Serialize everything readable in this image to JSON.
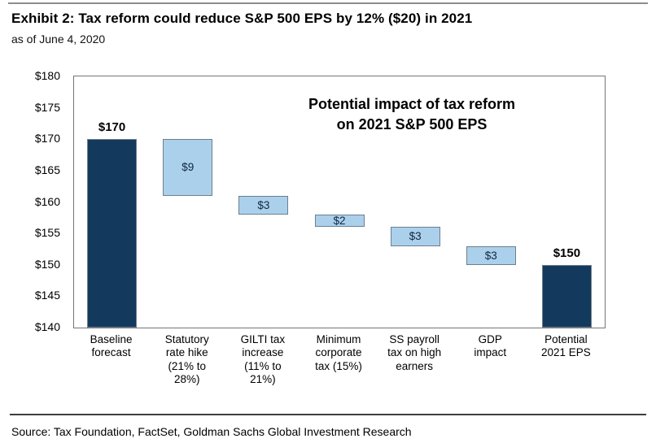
{
  "header": {
    "exhibit_title": "Exhibit 2: Tax reform could reduce S&P 500 EPS by 12% ($20) in 2021",
    "as_of": "as of June 4, 2020"
  },
  "footer": {
    "source": "Source: Tax Foundation, FactSet, Goldman Sachs Global Investment Research"
  },
  "colors": {
    "dark_bar": "#133a5c",
    "light_bar": "#abd0ec",
    "bar_border": "#6e7f8d",
    "plot_border": "#767676",
    "divider_gray": "#8c8c8c"
  },
  "chart_data": {
    "type": "bar",
    "subtype": "waterfall",
    "title": "Potential impact of tax reform\non 2021 S&P 500 EPS",
    "ylabel": "",
    "xlabel": "",
    "ylim": [
      140,
      180
    ],
    "ytick_interval": 5,
    "ytick_labels": [
      "$180",
      "$175",
      "$170",
      "$165",
      "$160",
      "$155",
      "$150",
      "$145",
      "$140"
    ],
    "grid": "off",
    "legend": "none",
    "categories": [
      "Baseline\nforecast",
      "Statutory\nrate hike\n(21% to\n28%)",
      "GILTI tax\nincrease\n(11% to\n21%)",
      "Minimum\ncorporate\ntax (15%)",
      "SS payroll\ntax on high\nearners",
      "GDP\nimpact",
      "Potential\n2021 EPS"
    ],
    "bars": [
      {
        "name": "Baseline forecast",
        "label": "$170",
        "value": 170,
        "start": 140,
        "end": 170,
        "style": "dark",
        "label_position": "above"
      },
      {
        "name": "Statutory rate hike (21% to 28%)",
        "label": "$9",
        "value": -9,
        "start": 161,
        "end": 170,
        "style": "light",
        "label_position": "inside"
      },
      {
        "name": "GILTI tax increase (11% to 21%)",
        "label": "$3",
        "value": -3,
        "start": 158,
        "end": 161,
        "style": "light",
        "label_position": "inside"
      },
      {
        "name": "Minimum corporate tax (15%)",
        "label": "$2",
        "value": -2,
        "start": 156,
        "end": 158,
        "style": "light",
        "label_position": "inside"
      },
      {
        "name": "SS payroll tax on high earners",
        "label": "$3",
        "value": -3,
        "start": 153,
        "end": 156,
        "style": "light",
        "label_position": "inside"
      },
      {
        "name": "GDP impact",
        "label": "$3",
        "value": -3,
        "start": 150,
        "end": 153,
        "style": "light",
        "label_position": "inside"
      },
      {
        "name": "Potential 2021 EPS",
        "label": "$150",
        "value": 150,
        "start": 140,
        "end": 150,
        "style": "dark",
        "label_position": "above"
      }
    ]
  }
}
